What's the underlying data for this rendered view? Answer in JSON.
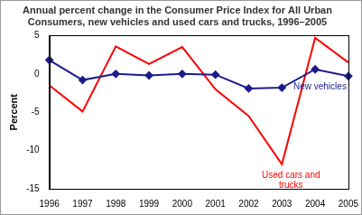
{
  "chart_data": {
    "type": "line",
    "title": [
      "Annual percent change in the Consumer Price Index for All Urban",
      "Consumers, new vehicles and used cars and trucks, 1996–2005"
    ],
    "y_label": "Percent",
    "categories": [
      "1996",
      "1997",
      "1998",
      "1999",
      "2000",
      "2001",
      "2002",
      "2003",
      "2004",
      "2005"
    ],
    "series": [
      {
        "name": "New vehicles",
        "color": "#1c1c8c",
        "marker": "diamond",
        "values": [
          1.8,
          -0.8,
          0.0,
          -0.2,
          0.0,
          -0.1,
          -1.9,
          -1.8,
          0.6,
          -0.3
        ]
      },
      {
        "name": "Used cars and trucks",
        "color": "#ff0000",
        "marker": "none",
        "values": [
          -1.5,
          -4.9,
          3.6,
          1.3,
          3.5,
          -2.0,
          -5.5,
          -11.8,
          4.7,
          1.5
        ]
      }
    ],
    "ylim": [
      -15,
      5
    ],
    "yticks": [
      -15,
      -10,
      -5,
      0,
      5
    ],
    "grid": false
  }
}
